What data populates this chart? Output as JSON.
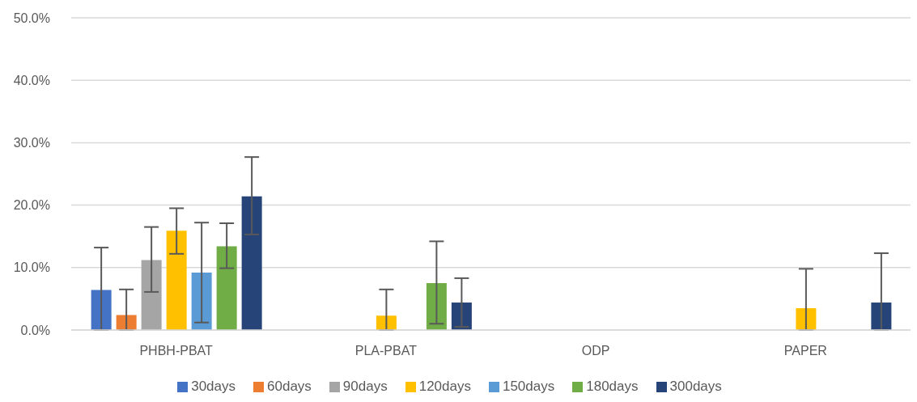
{
  "chart_data": {
    "type": "bar",
    "categories": [
      "PHBH-PBAT",
      "PLA-PBAT",
      "ODP",
      "PAPER"
    ],
    "series": [
      {
        "name": "30days",
        "color": "#4472c4",
        "values": [
          6.4,
          0,
          0,
          0
        ],
        "errors": [
          [
            0,
            13.2
          ],
          [
            0,
            0
          ],
          [
            0,
            0
          ],
          [
            0,
            0
          ]
        ]
      },
      {
        "name": "60days",
        "color": "#ed7d31",
        "values": [
          2.4,
          0,
          0,
          0
        ],
        "errors": [
          [
            0,
            6.5
          ],
          [
            0,
            0
          ],
          [
            0,
            0
          ],
          [
            0,
            0
          ]
        ]
      },
      {
        "name": "90days",
        "color": "#a5a5a5",
        "values": [
          11.2,
          0,
          0,
          0
        ],
        "errors": [
          [
            6.1,
            16.5
          ],
          [
            0,
            0
          ],
          [
            0,
            0
          ],
          [
            0,
            0
          ]
        ]
      },
      {
        "name": "120days",
        "color": "#ffc000",
        "values": [
          15.9,
          2.3,
          0,
          3.5
        ],
        "errors": [
          [
            12.2,
            19.5
          ],
          [
            0,
            6.5
          ],
          [
            0,
            0
          ],
          [
            0,
            9.8
          ]
        ]
      },
      {
        "name": "150days",
        "color": "#5b9bd5",
        "values": [
          9.2,
          0,
          0,
          0
        ],
        "errors": [
          [
            1.2,
            17.2
          ],
          [
            0,
            0
          ],
          [
            0,
            0
          ],
          [
            0,
            0
          ]
        ]
      },
      {
        "name": "180days",
        "color": "#70ad47",
        "values": [
          13.4,
          7.5,
          0,
          0
        ],
        "errors": [
          [
            9.9,
            17.1
          ],
          [
            1.0,
            14.2
          ],
          [
            0,
            0
          ],
          [
            0,
            0
          ]
        ]
      },
      {
        "name": "300days",
        "color": "#264478",
        "values": [
          21.4,
          4.4,
          0,
          4.4
        ],
        "errors": [
          [
            15.3,
            27.7
          ],
          [
            0.5,
            8.3
          ],
          [
            0,
            0
          ],
          [
            0,
            12.3
          ]
        ]
      }
    ],
    "ylim": [
      0,
      50
    ],
    "yticks": [
      {
        "value": 0,
        "label": "0.0%"
      },
      {
        "value": 10,
        "label": "10.0%"
      },
      {
        "value": 20,
        "label": "20.0%"
      },
      {
        "value": 30,
        "label": "30.0%"
      },
      {
        "value": 40,
        "label": "40.0%"
      },
      {
        "value": 50,
        "label": "50.0%"
      }
    ],
    "grid": "y",
    "legend": "bottom"
  }
}
